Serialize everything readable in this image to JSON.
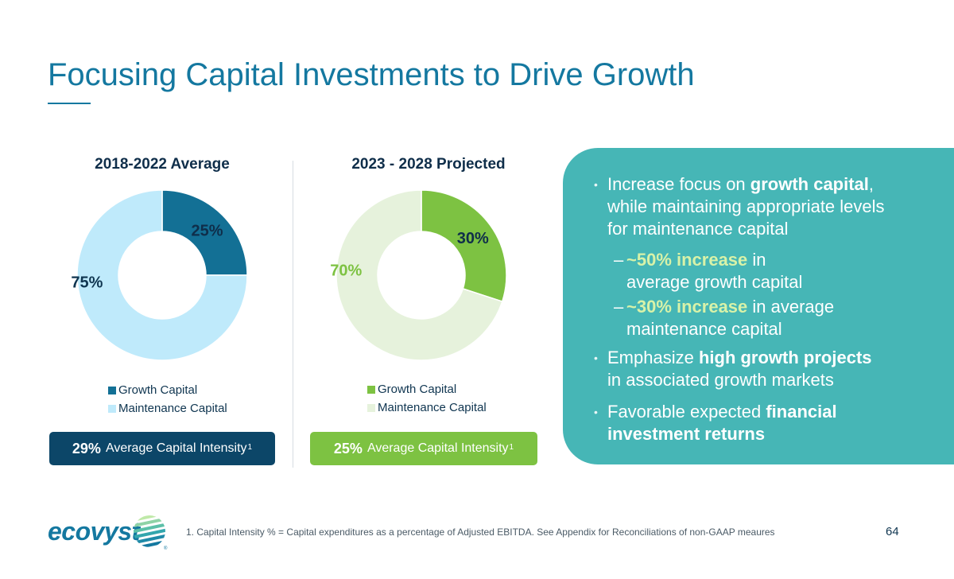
{
  "slide": {
    "title": "Focusing Capital Investments to Drive Growth",
    "page_number": "64",
    "footnote": "1. Capital Intensity % = Capital expenditures as a percentage of Adjusted EBITDA. See Appendix for Reconciliations of non-GAAP meaures",
    "logo": {
      "text": "ecovyst",
      "mark": "ecovyst-globe-icon",
      "registered": "®"
    }
  },
  "chart_data": [
    {
      "type": "pie",
      "title": "2018-2022 Average",
      "categories": [
        "Growth Capital",
        "Maintenance Capital"
      ],
      "values": [
        25,
        75
      ],
      "value_labels": [
        "25%",
        "75%"
      ],
      "colors": [
        "#137095",
        "#bfeafb"
      ],
      "label_colors": [
        "#0f2e4a",
        "#0f3550"
      ],
      "hole": true,
      "legend_position": "bottom"
    },
    {
      "type": "pie",
      "title": "2023 - 2028 Projected",
      "categories": [
        "Growth Capital",
        "Maintenance Capital"
      ],
      "values": [
        30,
        70
      ],
      "value_labels": [
        "30%",
        "70%"
      ],
      "colors": [
        "#7dc242",
        "#e6f2dc"
      ],
      "label_colors": [
        "#0f2e4a",
        "#7dc242"
      ],
      "hole": true,
      "legend_position": "bottom"
    }
  ],
  "intensity": [
    {
      "value": "29%",
      "label": "Average Capital Intensity",
      "sup": "1",
      "color": "#0c4668"
    },
    {
      "value": "25%",
      "label": "Average Capital Intensity",
      "sup": "1",
      "color": "#7dc242"
    }
  ],
  "panel": {
    "color": "#46b6b6",
    "bullets": [
      {
        "pre": "Increase focus on ",
        "bold": "growth capital",
        "post": ",",
        "line2": "while maintaining appropriate levels",
        "line3": "for maintenance capital"
      },
      {
        "pre": "Emphasize ",
        "bold": "high growth projects",
        "line2": "in associated growth markets"
      },
      {
        "pre": "Favorable expected ",
        "bold": "financial",
        "line2": "investment returns"
      }
    ],
    "subs": [
      {
        "dash": "–",
        "highlight": "~50% increase",
        "post": " in",
        "line2": "average growth capital"
      },
      {
        "dash": "–",
        "highlight": "~30% increase",
        "post": " in average",
        "line2": "maintenance capital"
      }
    ],
    "bullet_marker": "•"
  }
}
